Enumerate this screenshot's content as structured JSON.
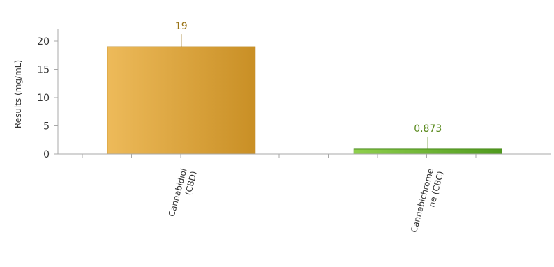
{
  "chart_data": {
    "type": "bar",
    "categories": [
      [
        "Cannabidiol",
        "(CBD)"
      ],
      [
        "Cannabichrome",
        "ne (CBC)"
      ]
    ],
    "values": [
      19,
      0.873
    ],
    "value_labels": [
      "19",
      "0.873"
    ],
    "ylabel": "Results (mg/mL)",
    "ylim": [
      0,
      20
    ],
    "yticks": [
      "0",
      "5",
      "10",
      "15",
      "20"
    ],
    "grid": false,
    "bar_colors": [
      {
        "light": "#edba5a",
        "dark": "#c98f25",
        "stroke": "#b98420",
        "label": "#9a7418"
      },
      {
        "light": "#8fcf4d",
        "dark": "#4f9a1e",
        "stroke": "#4a8a1c",
        "label": "#5a8a1e"
      }
    ]
  }
}
